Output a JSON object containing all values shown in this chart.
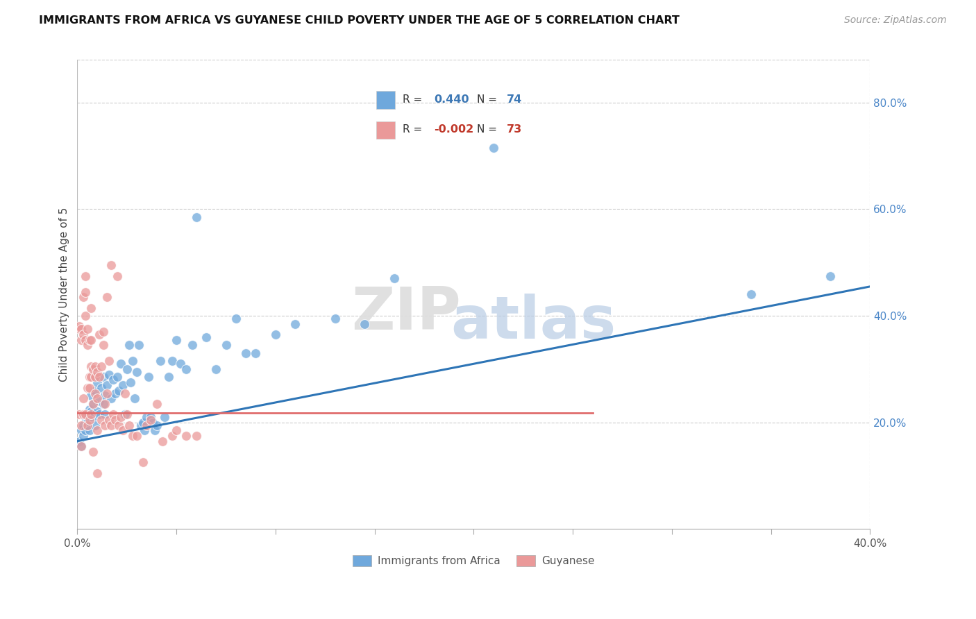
{
  "title": "IMMIGRANTS FROM AFRICA VS GUYANESE CHILD POVERTY UNDER THE AGE OF 5 CORRELATION CHART",
  "source": "Source: ZipAtlas.com",
  "ylabel": "Child Poverty Under the Age of 5",
  "legend_entries": [
    {
      "label": "Immigrants from Africa",
      "color": "#6fa8dc",
      "R": "0.440",
      "N": "74",
      "R_color": "#3d78b5",
      "N_color": "#3d78b5"
    },
    {
      "label": "Guyanese",
      "color": "#ea9999",
      "R": "-0.002",
      "N": "73",
      "R_color": "#c0392b",
      "N_color": "#c0392b"
    }
  ],
  "blue_color": "#6fa8dc",
  "pink_color": "#ea9999",
  "blue_line_color": "#2e75b6",
  "pink_line_color": "#e06c6c",
  "watermark_zip": "ZIP",
  "watermark_atlas": "atlas",
  "xlim": [
    0.0,
    0.4
  ],
  "ylim": [
    0.0,
    0.88
  ],
  "yticks": [
    0.2,
    0.4,
    0.6,
    0.8
  ],
  "ytick_labels": [
    "20.0%",
    "40.0%",
    "60.0%",
    "80.0%"
  ],
  "blue_line_x": [
    0.0,
    0.4
  ],
  "blue_line_y": [
    0.165,
    0.455
  ],
  "pink_line_x": [
    0.0,
    0.26
  ],
  "pink_line_y": [
    0.218,
    0.218
  ],
  "blue_scatter": [
    [
      0.001,
      0.165
    ],
    [
      0.002,
      0.185
    ],
    [
      0.002,
      0.155
    ],
    [
      0.003,
      0.195
    ],
    [
      0.003,
      0.175
    ],
    [
      0.004,
      0.21
    ],
    [
      0.004,
      0.185
    ],
    [
      0.005,
      0.215
    ],
    [
      0.005,
      0.2
    ],
    [
      0.006,
      0.225
    ],
    [
      0.006,
      0.185
    ],
    [
      0.007,
      0.22
    ],
    [
      0.007,
      0.25
    ],
    [
      0.008,
      0.235
    ],
    [
      0.008,
      0.21
    ],
    [
      0.009,
      0.26
    ],
    [
      0.009,
      0.195
    ],
    [
      0.01,
      0.22
    ],
    [
      0.01,
      0.275
    ],
    [
      0.011,
      0.24
    ],
    [
      0.011,
      0.215
    ],
    [
      0.012,
      0.265
    ],
    [
      0.013,
      0.235
    ],
    [
      0.013,
      0.285
    ],
    [
      0.014,
      0.25
    ],
    [
      0.014,
      0.215
    ],
    [
      0.015,
      0.27
    ],
    [
      0.016,
      0.29
    ],
    [
      0.017,
      0.245
    ],
    [
      0.018,
      0.28
    ],
    [
      0.019,
      0.255
    ],
    [
      0.02,
      0.285
    ],
    [
      0.021,
      0.26
    ],
    [
      0.022,
      0.31
    ],
    [
      0.023,
      0.27
    ],
    [
      0.024,
      0.215
    ],
    [
      0.025,
      0.3
    ],
    [
      0.026,
      0.345
    ],
    [
      0.027,
      0.275
    ],
    [
      0.028,
      0.315
    ],
    [
      0.029,
      0.245
    ],
    [
      0.03,
      0.295
    ],
    [
      0.031,
      0.345
    ],
    [
      0.032,
      0.195
    ],
    [
      0.033,
      0.2
    ],
    [
      0.034,
      0.185
    ],
    [
      0.035,
      0.21
    ],
    [
      0.036,
      0.285
    ],
    [
      0.037,
      0.21
    ],
    [
      0.038,
      0.2
    ],
    [
      0.039,
      0.185
    ],
    [
      0.04,
      0.195
    ],
    [
      0.042,
      0.315
    ],
    [
      0.044,
      0.21
    ],
    [
      0.046,
      0.285
    ],
    [
      0.048,
      0.315
    ],
    [
      0.05,
      0.355
    ],
    [
      0.052,
      0.31
    ],
    [
      0.055,
      0.3
    ],
    [
      0.058,
      0.345
    ],
    [
      0.06,
      0.585
    ],
    [
      0.065,
      0.36
    ],
    [
      0.07,
      0.3
    ],
    [
      0.075,
      0.345
    ],
    [
      0.08,
      0.395
    ],
    [
      0.085,
      0.33
    ],
    [
      0.09,
      0.33
    ],
    [
      0.1,
      0.365
    ],
    [
      0.11,
      0.385
    ],
    [
      0.13,
      0.395
    ],
    [
      0.145,
      0.385
    ],
    [
      0.16,
      0.47
    ],
    [
      0.21,
      0.715
    ],
    [
      0.34,
      0.44
    ],
    [
      0.38,
      0.475
    ]
  ],
  "pink_scatter": [
    [
      0.001,
      0.215
    ],
    [
      0.001,
      0.375
    ],
    [
      0.001,
      0.38
    ],
    [
      0.002,
      0.195
    ],
    [
      0.002,
      0.155
    ],
    [
      0.002,
      0.355
    ],
    [
      0.002,
      0.375
    ],
    [
      0.003,
      0.215
    ],
    [
      0.003,
      0.245
    ],
    [
      0.003,
      0.365
    ],
    [
      0.003,
      0.435
    ],
    [
      0.004,
      0.215
    ],
    [
      0.004,
      0.355
    ],
    [
      0.004,
      0.4
    ],
    [
      0.004,
      0.445
    ],
    [
      0.004,
      0.475
    ],
    [
      0.005,
      0.195
    ],
    [
      0.005,
      0.265
    ],
    [
      0.005,
      0.345
    ],
    [
      0.005,
      0.375
    ],
    [
      0.006,
      0.205
    ],
    [
      0.006,
      0.265
    ],
    [
      0.006,
      0.285
    ],
    [
      0.006,
      0.355
    ],
    [
      0.007,
      0.215
    ],
    [
      0.007,
      0.285
    ],
    [
      0.007,
      0.305
    ],
    [
      0.007,
      0.355
    ],
    [
      0.007,
      0.415
    ],
    [
      0.008,
      0.145
    ],
    [
      0.008,
      0.235
    ],
    [
      0.008,
      0.3
    ],
    [
      0.009,
      0.255
    ],
    [
      0.009,
      0.285
    ],
    [
      0.009,
      0.305
    ],
    [
      0.01,
      0.105
    ],
    [
      0.01,
      0.185
    ],
    [
      0.01,
      0.245
    ],
    [
      0.01,
      0.295
    ],
    [
      0.011,
      0.285
    ],
    [
      0.011,
      0.365
    ],
    [
      0.012,
      0.205
    ],
    [
      0.012,
      0.305
    ],
    [
      0.013,
      0.345
    ],
    [
      0.013,
      0.37
    ],
    [
      0.014,
      0.195
    ],
    [
      0.014,
      0.235
    ],
    [
      0.015,
      0.255
    ],
    [
      0.015,
      0.435
    ],
    [
      0.016,
      0.205
    ],
    [
      0.016,
      0.315
    ],
    [
      0.017,
      0.195
    ],
    [
      0.017,
      0.495
    ],
    [
      0.018,
      0.215
    ],
    [
      0.019,
      0.205
    ],
    [
      0.02,
      0.475
    ],
    [
      0.021,
      0.195
    ],
    [
      0.022,
      0.21
    ],
    [
      0.023,
      0.185
    ],
    [
      0.024,
      0.255
    ],
    [
      0.025,
      0.215
    ],
    [
      0.026,
      0.195
    ],
    [
      0.028,
      0.175
    ],
    [
      0.03,
      0.175
    ],
    [
      0.033,
      0.125
    ],
    [
      0.035,
      0.195
    ],
    [
      0.037,
      0.205
    ],
    [
      0.04,
      0.235
    ],
    [
      0.043,
      0.165
    ],
    [
      0.048,
      0.175
    ],
    [
      0.05,
      0.185
    ],
    [
      0.055,
      0.175
    ],
    [
      0.06,
      0.175
    ]
  ]
}
